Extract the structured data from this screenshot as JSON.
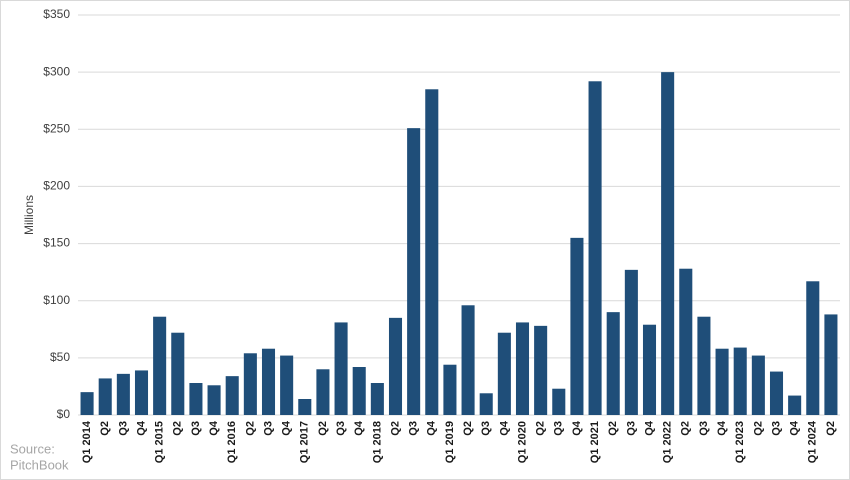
{
  "chart_data": {
    "type": "bar",
    "y_axis_label": "Millions",
    "source_label": "Source:",
    "source_name": "PitchBook",
    "categories": [
      "Q1 2014",
      "Q2",
      "Q3",
      "Q4",
      "Q1 2015",
      "Q2",
      "Q3",
      "Q4",
      "Q1 2016",
      "Q2",
      "Q3",
      "Q4",
      "Q1 2017",
      "Q2",
      "Q3",
      "Q4",
      "Q1 2018",
      "Q2",
      "Q3",
      "Q4",
      "Q1 2019",
      "Q2",
      "Q3",
      "Q4",
      "Q1 2020",
      "Q2",
      "Q3",
      "Q4",
      "Q1 2021",
      "Q2",
      "Q3",
      "Q4",
      "Q1 2022",
      "Q2",
      "Q3",
      "Q4",
      "Q1 2023",
      "Q2",
      "Q3",
      "Q4",
      "Q1 2024",
      "Q2"
    ],
    "values": [
      20,
      32,
      36,
      39,
      86,
      72,
      28,
      26,
      34,
      54,
      58,
      52,
      14,
      40,
      81,
      42,
      28,
      85,
      251,
      285,
      44,
      96,
      19,
      72,
      81,
      78,
      23,
      155,
      292,
      90,
      127,
      79,
      300,
      128,
      86,
      58,
      59,
      52,
      38,
      17,
      117,
      88
    ],
    "color": "#1f4e79",
    "ylim": [
      0,
      350
    ],
    "yticks": [
      {
        "value": 0,
        "label": "$0"
      },
      {
        "value": 50,
        "label": "$50"
      },
      {
        "value": 100,
        "label": "$100"
      },
      {
        "value": 150,
        "label": "$150"
      },
      {
        "value": 200,
        "label": "$200"
      },
      {
        "value": 250,
        "label": "$250"
      },
      {
        "value": 300,
        "label": "$300"
      },
      {
        "value": 350,
        "label": "$350"
      }
    ],
    "grid": true
  }
}
